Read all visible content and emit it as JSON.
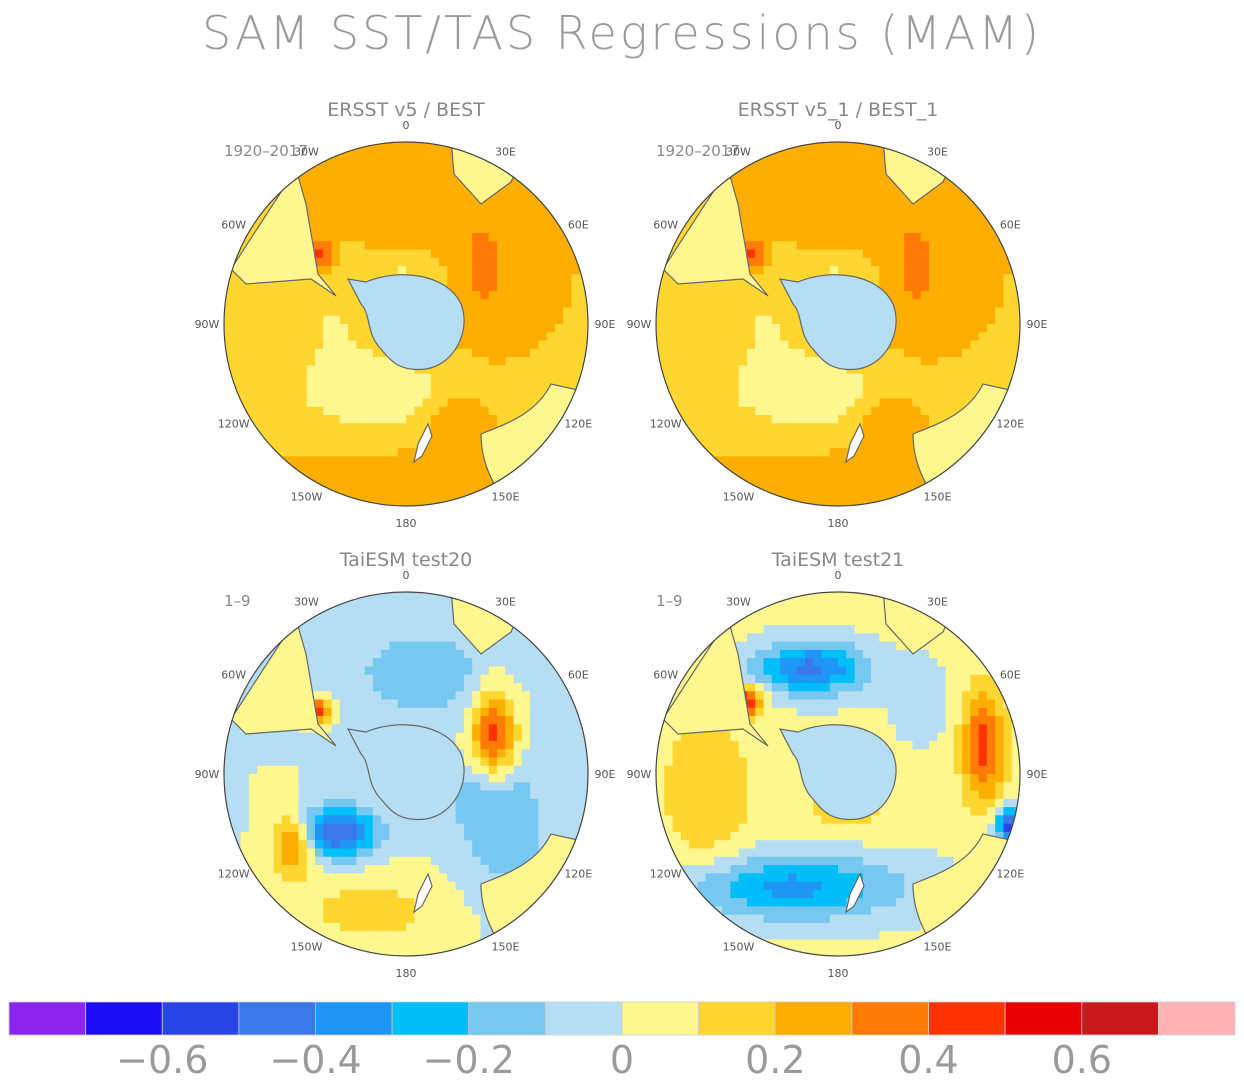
{
  "title": "SAM SST/TAS Regressions (MAM)",
  "chart_data": {
    "type": "heatmap",
    "projection": "south-polar-stereographic",
    "panels": [
      {
        "title": "ERSST v5 / BEST",
        "period": "1920–2017",
        "pattern": "obs"
      },
      {
        "title": "ERSST v5_1 / BEST_1",
        "period": "1920–2017",
        "pattern": "obs"
      },
      {
        "title": "TaiESM test20",
        "period": "1–9",
        "pattern": "model20"
      },
      {
        "title": "TaiESM test21",
        "period": "1–9",
        "pattern": "model21"
      }
    ],
    "longitude_labels": [
      "0",
      "30E",
      "60E",
      "90E",
      "120E",
      "150E",
      "180",
      "150W",
      "120W",
      "90W",
      "60W",
      "30W"
    ],
    "colorbar": {
      "levels": [
        -0.7,
        -0.6,
        -0.5,
        -0.4,
        -0.3,
        -0.2,
        -0.1,
        0,
        0.1,
        0.2,
        0.3,
        0.4,
        0.5,
        0.6,
        0.7
      ],
      "colors": [
        "#8b24ef",
        "#1a0cf5",
        "#2a45e6",
        "#3a78ea",
        "#1f96f6",
        "#00bff8",
        "#77c8f1",
        "#b6def3",
        "#fef78f",
        "#fdd630",
        "#fdae03",
        "#fe7b06",
        "#fe3302",
        "#e60003",
        "#c81a1d",
        "#feb4b4"
      ],
      "tick_labels": [
        "−0.6",
        "−0.4",
        "−0.2",
        "0",
        "0.2",
        "0.4",
        "0.6"
      ],
      "tick_values": [
        -0.6,
        -0.4,
        -0.2,
        0,
        0.2,
        0.4,
        0.6
      ]
    }
  }
}
